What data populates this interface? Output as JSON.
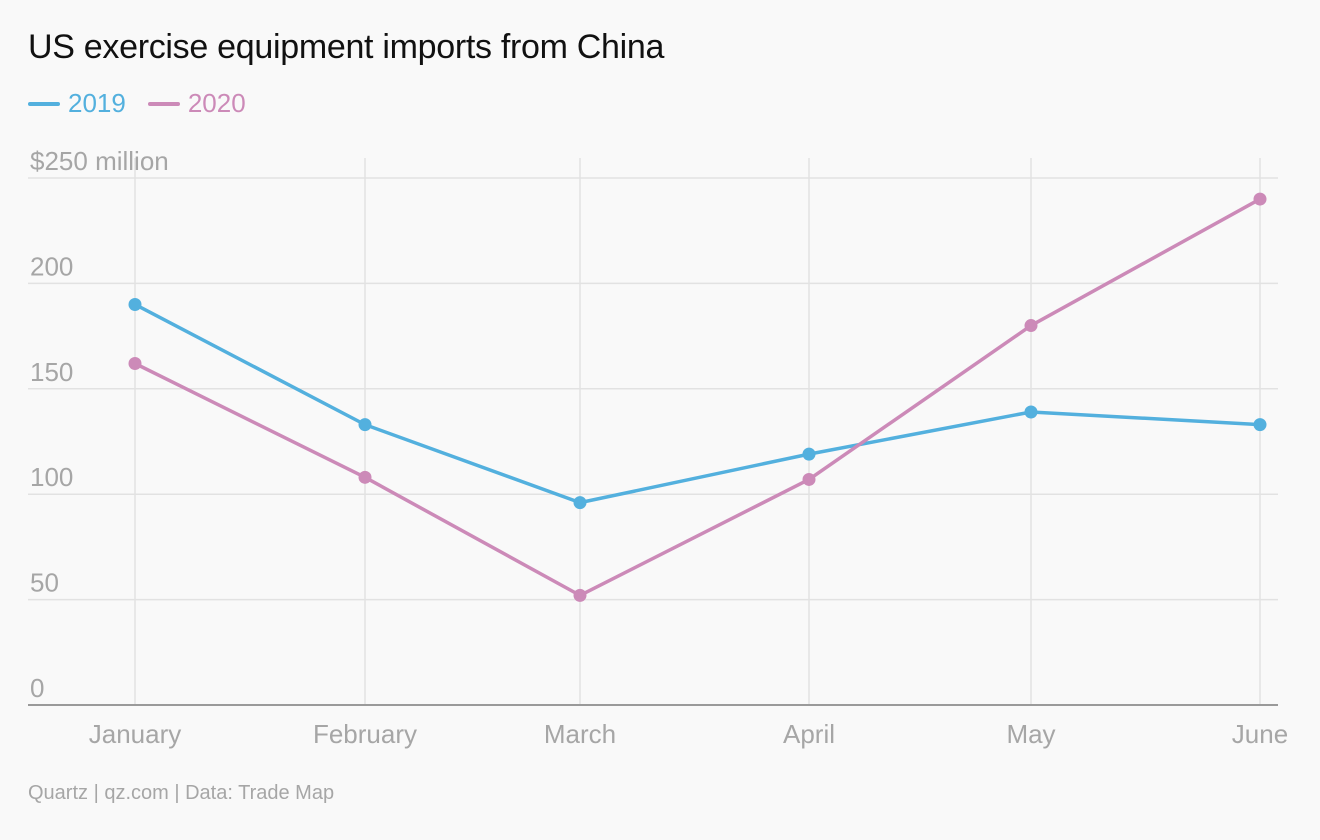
{
  "colors": {
    "series_2019": "#53b0de",
    "series_2020": "#cc8ab8",
    "grid": "#e2e2e2",
    "axis": "#9a9a9a",
    "tick_text": "#a6a6a6"
  },
  "footer": {
    "source": "Quartz | qz.com | Data: Trade Map"
  },
  "chart_data": {
    "type": "line",
    "title": "US exercise equipment imports from China",
    "categories": [
      "January",
      "February",
      "March",
      "April",
      "May",
      "June"
    ],
    "y_tick_labels": [
      "0",
      "50",
      "100",
      "150",
      "200",
      "$250 million"
    ],
    "y_ticks": [
      0,
      50,
      100,
      150,
      200,
      250
    ],
    "ylim": [
      0,
      250
    ],
    "grid": true,
    "legend_position": "top-left",
    "series": [
      {
        "name": "2019",
        "color": "#53b0de",
        "values": [
          190,
          133,
          96,
          119,
          139,
          133
        ]
      },
      {
        "name": "2020",
        "color": "#cc8ab8",
        "values": [
          162,
          108,
          52,
          107,
          180,
          240
        ]
      }
    ]
  }
}
